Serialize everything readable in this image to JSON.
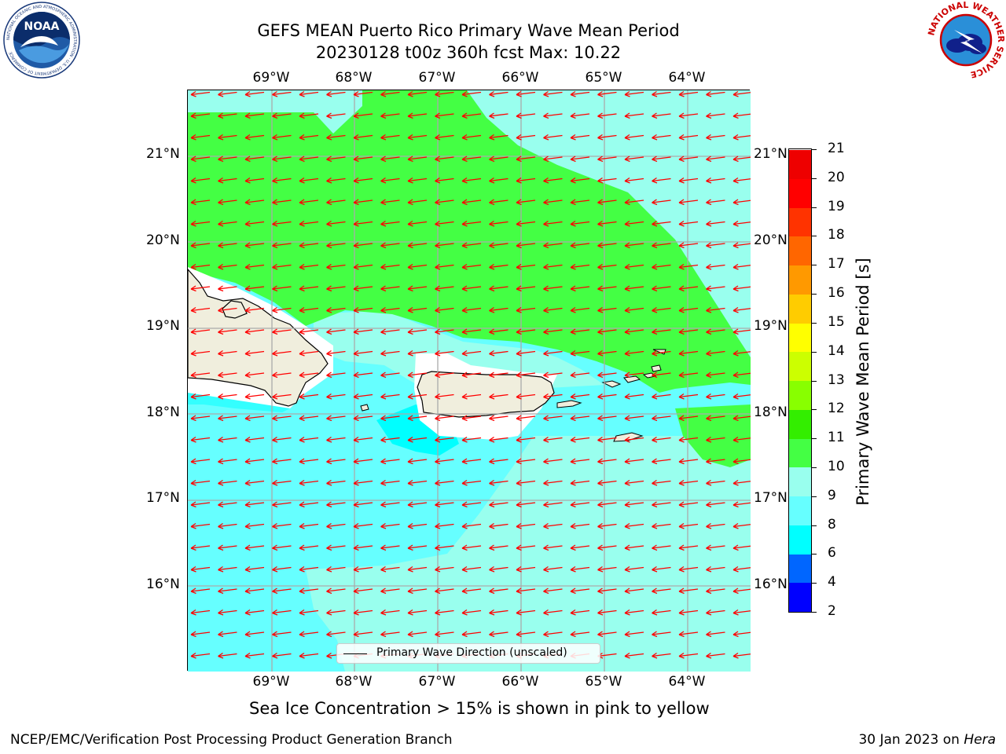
{
  "header": {
    "title": "GEFS MEAN Puerto Rico Primary Wave Mean Period",
    "subtitle": "20230128 t00z 360h fcst   Max: 10.22"
  },
  "axes": {
    "lon_labels": [
      "69°W",
      "68°W",
      "67°W",
      "66°W",
      "65°W",
      "64°W"
    ],
    "lat_labels": [
      "21°N",
      "20°N",
      "19°N",
      "18°N",
      "17°N",
      "16°N"
    ]
  },
  "legend": {
    "entry": "Primary Wave Direction (unscaled)",
    "arrow_color": "#ff0000",
    "coastline_color": "#000000"
  },
  "colorbar": {
    "label": "Primary Wave Mean Period [s]",
    "tick_labels": [
      "2",
      "4",
      "6",
      "8",
      "9",
      "10",
      "11",
      "12",
      "13",
      "14",
      "15",
      "16",
      "17",
      "18",
      "19",
      "20",
      "21"
    ],
    "colors": [
      "#0000ff",
      "#0066ff",
      "#00ffff",
      "#66ffff",
      "#99ffee",
      "#44ff44",
      "#33ee00",
      "#88ff00",
      "#ccff00",
      "#ffff00",
      "#ffcc00",
      "#ff9900",
      "#ff6600",
      "#ff3300",
      "#ff0000",
      "#ee0000"
    ]
  },
  "caption": "Sea Ice Concentration > 15% is shown in pink to yellow",
  "footer": {
    "org": "NCEP/EMC/Verification Post Processing Product Generation Branch",
    "date": "30 Jan 2023 on",
    "machine": "Hera"
  },
  "logos": {
    "left": "noaa-logo",
    "right": "national-weather-service-logo",
    "noaa_text": "NOAA",
    "noaa_ring_text": "NATIONAL OCEANIC AND ATMOSPHERIC ADMINISTRATION · U.S. DEPARTMENT OF COMMERCE",
    "nws_ring_text": "NATIONAL WEATHER SERVICE"
  },
  "map_colors": {
    "period_8_9": "#66ffff",
    "period_9_10": "#99ffee",
    "period_10_11": "#44ff44",
    "period_6_8": "#00ffff",
    "land": "#f0eedd",
    "grid": "#aaaaaa"
  }
}
